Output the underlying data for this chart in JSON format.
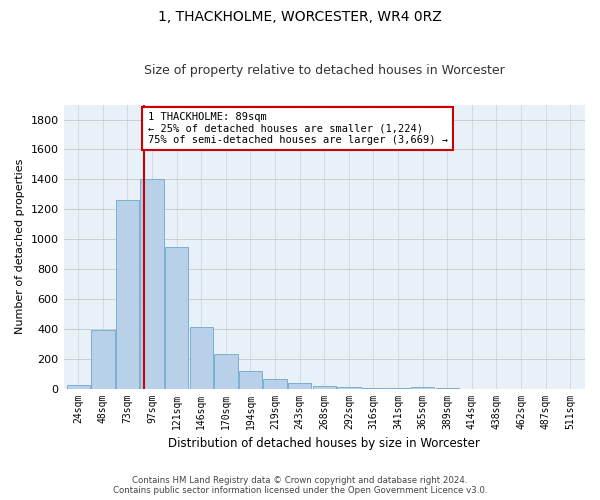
{
  "title": "1, THACKHOLME, WORCESTER, WR4 0RZ",
  "subtitle": "Size of property relative to detached houses in Worcester",
  "xlabel": "Distribution of detached houses by size in Worcester",
  "ylabel": "Number of detached properties",
  "bar_color": "#b8d0e8",
  "bar_edge_color": "#7aafd4",
  "background_color": "#e8f0f8",
  "grid_color": "#c8c8c8",
  "categories": [
    "24sqm",
    "48sqm",
    "73sqm",
    "97sqm",
    "121sqm",
    "146sqm",
    "170sqm",
    "194sqm",
    "219sqm",
    "243sqm",
    "268sqm",
    "292sqm",
    "316sqm",
    "341sqm",
    "365sqm",
    "389sqm",
    "414sqm",
    "438sqm",
    "462sqm",
    "487sqm",
    "511sqm"
  ],
  "values": [
    25,
    390,
    1260,
    1400,
    950,
    410,
    230,
    120,
    65,
    40,
    20,
    10,
    5,
    5,
    10,
    5,
    0,
    0,
    0,
    0,
    0
  ],
  "ylim": [
    0,
    1900
  ],
  "yticks": [
    0,
    200,
    400,
    600,
    800,
    1000,
    1200,
    1400,
    1600,
    1800
  ],
  "property_line_label": "1 THACKHOLME: 89sqm",
  "annotation_line1": "← 25% of detached houses are smaller (1,224)",
  "annotation_line2": "75% of semi-detached houses are larger (3,669) →",
  "annotation_box_color": "#ffffff",
  "annotation_border_color": "#cc0000",
  "vline_color": "#cc0000",
  "footer_line1": "Contains HM Land Registry data © Crown copyright and database right 2024.",
  "footer_line2": "Contains public sector information licensed under the Open Government Licence v3.0.",
  "figsize": [
    6.0,
    5.0
  ],
  "dpi": 100
}
